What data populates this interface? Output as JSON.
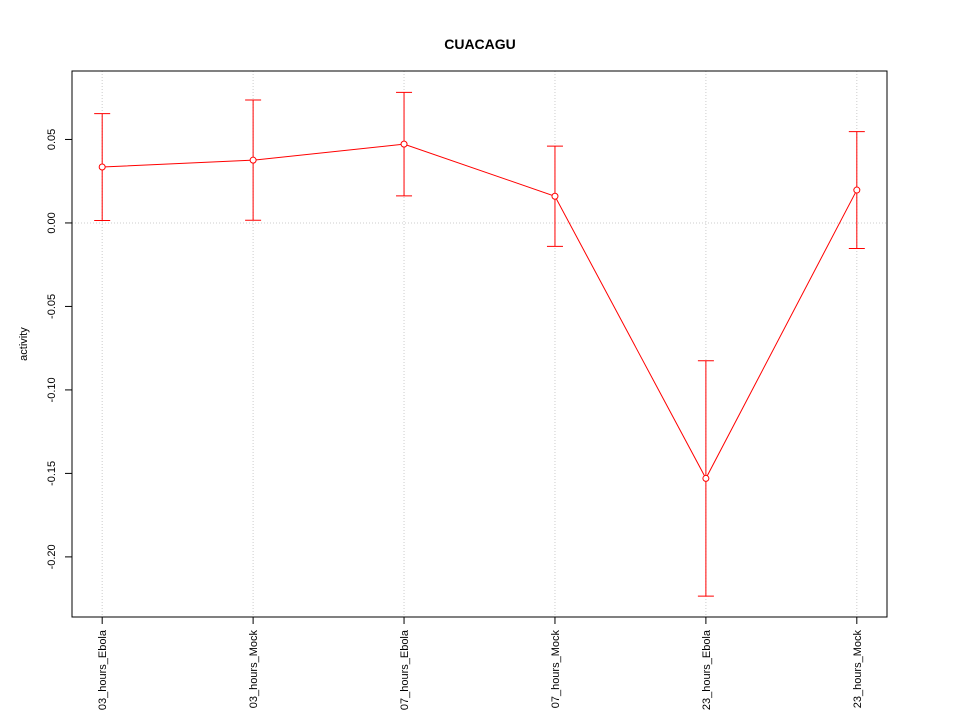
{
  "chart_data": {
    "type": "line",
    "title": "CUACAGU",
    "y_label": "activity",
    "categories": [
      "03_hours_Ebola",
      "03_hours_Mock",
      "07_hours_Ebola",
      "07_hours_Mock",
      "23_hours_Ebola",
      "23_hours_Mock"
    ],
    "series": [
      {
        "color": "#ff0000",
        "values": [
          0.0335,
          0.0376,
          0.0472,
          0.016,
          -0.153,
          0.0197
        ],
        "errors": [
          0.032,
          0.036,
          0.031,
          0.03,
          0.0705,
          0.035
        ]
      }
    ],
    "ylim": [
      -0.236,
      0.091
    ],
    "yticks": [
      {
        "value": -0.2,
        "label": "-0.20"
      },
      {
        "value": -0.15,
        "label": "-0.15"
      },
      {
        "value": -0.1,
        "label": "-0.10"
      },
      {
        "value": -0.05,
        "label": "-0.05"
      },
      {
        "value": 0,
        "label": "0.00"
      },
      {
        "value": 0.05,
        "label": "0.05"
      }
    ],
    "grid": true,
    "hline": 0
  }
}
